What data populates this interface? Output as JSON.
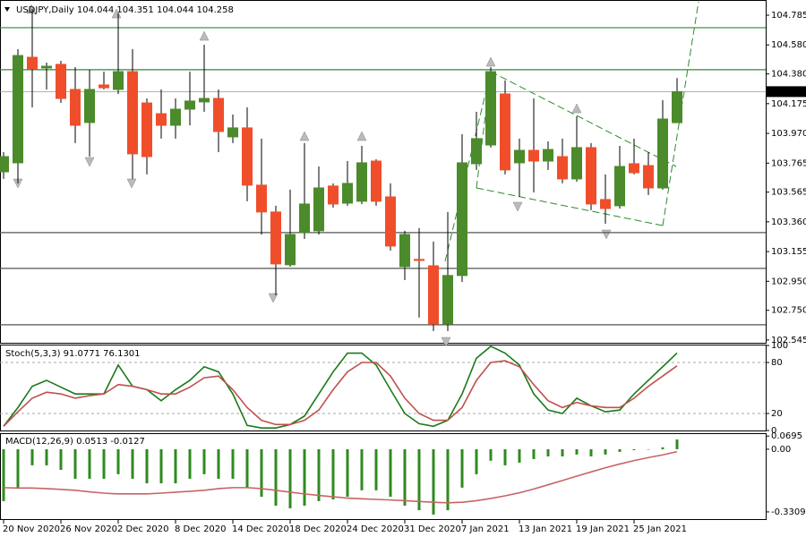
{
  "chart_data": [
    {
      "type": "candlestick",
      "title": "USDJPY,Daily 104.044 104.351 104.044 104.258",
      "categories": [
        "20 Nov 2020",
        null,
        null,
        null,
        "26 Nov 2020",
        null,
        null,
        null,
        "2 Dec 2020",
        null,
        null,
        null,
        "8 Dec 2020",
        null,
        null,
        null,
        "14 Dec 2020",
        null,
        null,
        null,
        "18 Dec 2020",
        null,
        null,
        null,
        "24 Dec 2020",
        null,
        null,
        null,
        "31 Dec 2020",
        null,
        null,
        null,
        "7 Jan 2021",
        null,
        null,
        null,
        "13 Jan 2021",
        null,
        null,
        null,
        "19 Jan 2021",
        null,
        null,
        null,
        "25 Jan 2021",
        null,
        null,
        null
      ],
      "open": [
        103.705,
        103.767,
        104.495,
        104.421,
        104.446,
        104.273,
        104.045,
        104.304,
        104.273,
        104.396,
        104.18,
        104.106,
        104.026,
        104.137,
        104.187,
        104.211,
        103.946,
        104.008,
        103.613,
        103.428,
        103.064,
        103.286,
        103.298,
        103.607,
        103.489,
        103.502,
        103.779,
        103.532,
        103.051,
        103.101,
        103.057,
        102.656,
        102.99,
        103.761,
        103.89,
        104.242,
        103.767,
        103.853,
        103.779,
        103.81,
        103.656,
        103.872,
        103.514,
        103.471,
        103.761,
        103.748,
        103.594,
        104.044
      ],
      "high": [
        103.841,
        104.551,
        104.828,
        104.458,
        104.47,
        104.427,
        104.409,
        104.396,
        104.797,
        104.551,
        104.211,
        104.273,
        104.211,
        104.396,
        104.581,
        104.273,
        104.1,
        104.149,
        103.934,
        103.471,
        103.582,
        103.903,
        103.742,
        103.625,
        103.779,
        103.884,
        103.792,
        103.625,
        103.298,
        103.317,
        103.224,
        103.428,
        103.964,
        104.119,
        104.427,
        104.335,
        103.934,
        104.211,
        103.915,
        103.934,
        104.088,
        103.903,
        103.687,
        103.884,
        103.934,
        103.841,
        104.199,
        104.351
      ],
      "low": [
        103.656,
        103.625,
        104.149,
        104.273,
        104.18,
        103.903,
        103.81,
        104.273,
        104.242,
        103.656,
        103.687,
        103.934,
        103.934,
        104.026,
        104.119,
        103.841,
        103.903,
        103.502,
        103.273,
        102.854,
        103.051,
        103.242,
        103.273,
        103.458,
        103.471,
        103.483,
        103.471,
        103.162,
        102.959,
        102.7,
        102.607,
        102.607,
        102.946,
        103.718,
        103.872,
        103.687,
        103.532,
        103.563,
        103.718,
        103.625,
        103.637,
        103.44,
        103.347,
        103.452,
        103.687,
        103.545,
        103.582,
        104.044
      ],
      "close": [
        103.81,
        104.507,
        104.415,
        104.433,
        104.211,
        104.026,
        104.273,
        104.285,
        104.396,
        103.829,
        103.81,
        104.026,
        104.137,
        104.193,
        104.211,
        103.983,
        104.008,
        103.613,
        103.428,
        103.07,
        103.273,
        103.483,
        103.594,
        103.483,
        103.625,
        103.767,
        103.502,
        103.193,
        103.273,
        103.094,
        102.656,
        102.99,
        103.767,
        103.934,
        104.396,
        103.718,
        103.853,
        103.779,
        103.859,
        103.656,
        103.872,
        103.483,
        103.452,
        103.742,
        103.699,
        103.594,
        104.069,
        104.258
      ],
      "up_color": "#4b8b2b",
      "down_color": "#f04e2b",
      "ylim": [
        102.526,
        104.859
      ],
      "yticks": [
        104.785,
        {
          "value": 104.58,
          "label": "104.580"
        },
        {
          "value": 104.38,
          "label": "104.380"
        },
        104.175,
        {
          "value": 103.97,
          "label": "103.970"
        },
        103.765,
        103.565,
        {
          "value": 103.36,
          "label": "103.360"
        },
        103.155,
        {
          "value": 102.95,
          "label": "102.950"
        },
        {
          "value": 102.75,
          "label": "102.750"
        },
        102.545
      ],
      "hlines": [
        {
          "value": 104.699,
          "color": "#2e8b2e"
        },
        {
          "value": 104.409,
          "color": "#2e8b2e"
        },
        {
          "value": 103.286,
          "color": "#555555"
        },
        {
          "value": 103.039,
          "color": "#555555"
        },
        {
          "value": 102.65,
          "color": "#555555"
        }
      ]
    },
    {
      "type": "line",
      "title": "Stoch(5,3,3) 91.0771 76.1301",
      "series": [
        {
          "color": "#1a7a1a",
          "values": [
            5,
            27,
            52,
            59,
            51,
            43,
            43,
            43,
            77,
            52,
            48,
            35,
            48,
            59,
            75,
            69,
            43,
            6,
            3,
            3,
            7,
            17,
            43,
            69,
            91,
            91,
            77,
            48,
            20,
            8,
            5,
            12,
            43,
            85,
            99,
            91,
            77,
            43,
            24,
            20,
            38,
            29,
            22,
            24,
            43,
            59,
            75,
            91.0771
          ]
        },
        {
          "color": "#c0504d",
          "values": [
            5,
            22,
            38,
            45,
            43,
            38,
            41,
            43,
            54,
            52,
            48,
            43,
            43,
            51,
            62,
            64,
            48,
            27,
            12,
            7,
            7,
            12,
            24,
            48,
            69,
            80,
            80,
            64,
            38,
            20,
            12,
            12,
            27,
            59,
            80,
            82,
            75,
            54,
            35,
            27,
            33,
            29,
            27,
            27,
            38,
            52,
            64,
            76.1301
          ]
        }
      ],
      "ylim": [
        0,
        100
      ],
      "yticks": [
        100,
        80,
        20,
        0
      ],
      "levels": [
        80,
        20
      ]
    },
    {
      "type": "macd",
      "title": "MACD(12,26,9) 0.0513 -0.0127",
      "histogram": [
        -0.274,
        -0.203,
        -0.085,
        -0.085,
        -0.109,
        -0.156,
        -0.156,
        -0.156,
        -0.132,
        -0.156,
        -0.18,
        -0.18,
        -0.18,
        -0.156,
        -0.132,
        -0.156,
        -0.156,
        -0.203,
        -0.251,
        -0.298,
        -0.312,
        -0.298,
        -0.274,
        -0.265,
        -0.251,
        -0.217,
        -0.217,
        -0.251,
        -0.298,
        -0.322,
        -0.345,
        -0.322,
        -0.203,
        -0.132,
        -0.061,
        -0.085,
        -0.071,
        -0.052,
        -0.038,
        -0.038,
        -0.028,
        -0.038,
        -0.028,
        -0.014,
        -0.005,
        -0.002,
        0.01,
        0.0513
      ],
      "histogram_color": "#2f8a1f",
      "signal": [
        -0.203,
        -0.205,
        -0.205,
        -0.208,
        -0.212,
        -0.217,
        -0.225,
        -0.232,
        -0.236,
        -0.236,
        -0.236,
        -0.232,
        -0.227,
        -0.222,
        -0.217,
        -0.208,
        -0.203,
        -0.203,
        -0.208,
        -0.217,
        -0.227,
        -0.236,
        -0.244,
        -0.251,
        -0.258,
        -0.262,
        -0.265,
        -0.268,
        -0.272,
        -0.276,
        -0.28,
        -0.283,
        -0.28,
        -0.272,
        -0.26,
        -0.246,
        -0.23,
        -0.21,
        -0.188,
        -0.165,
        -0.142,
        -0.12,
        -0.098,
        -0.078,
        -0.06,
        -0.044,
        -0.03,
        -0.0127
      ],
      "signal_color": "#c86464",
      "ylim": [
        -0.369,
        0.08
      ],
      "yticks": [
        0.0695,
        {
          "value": 0,
          "label": "0.00"
        },
        -0.3309
      ]
    }
  ]
}
